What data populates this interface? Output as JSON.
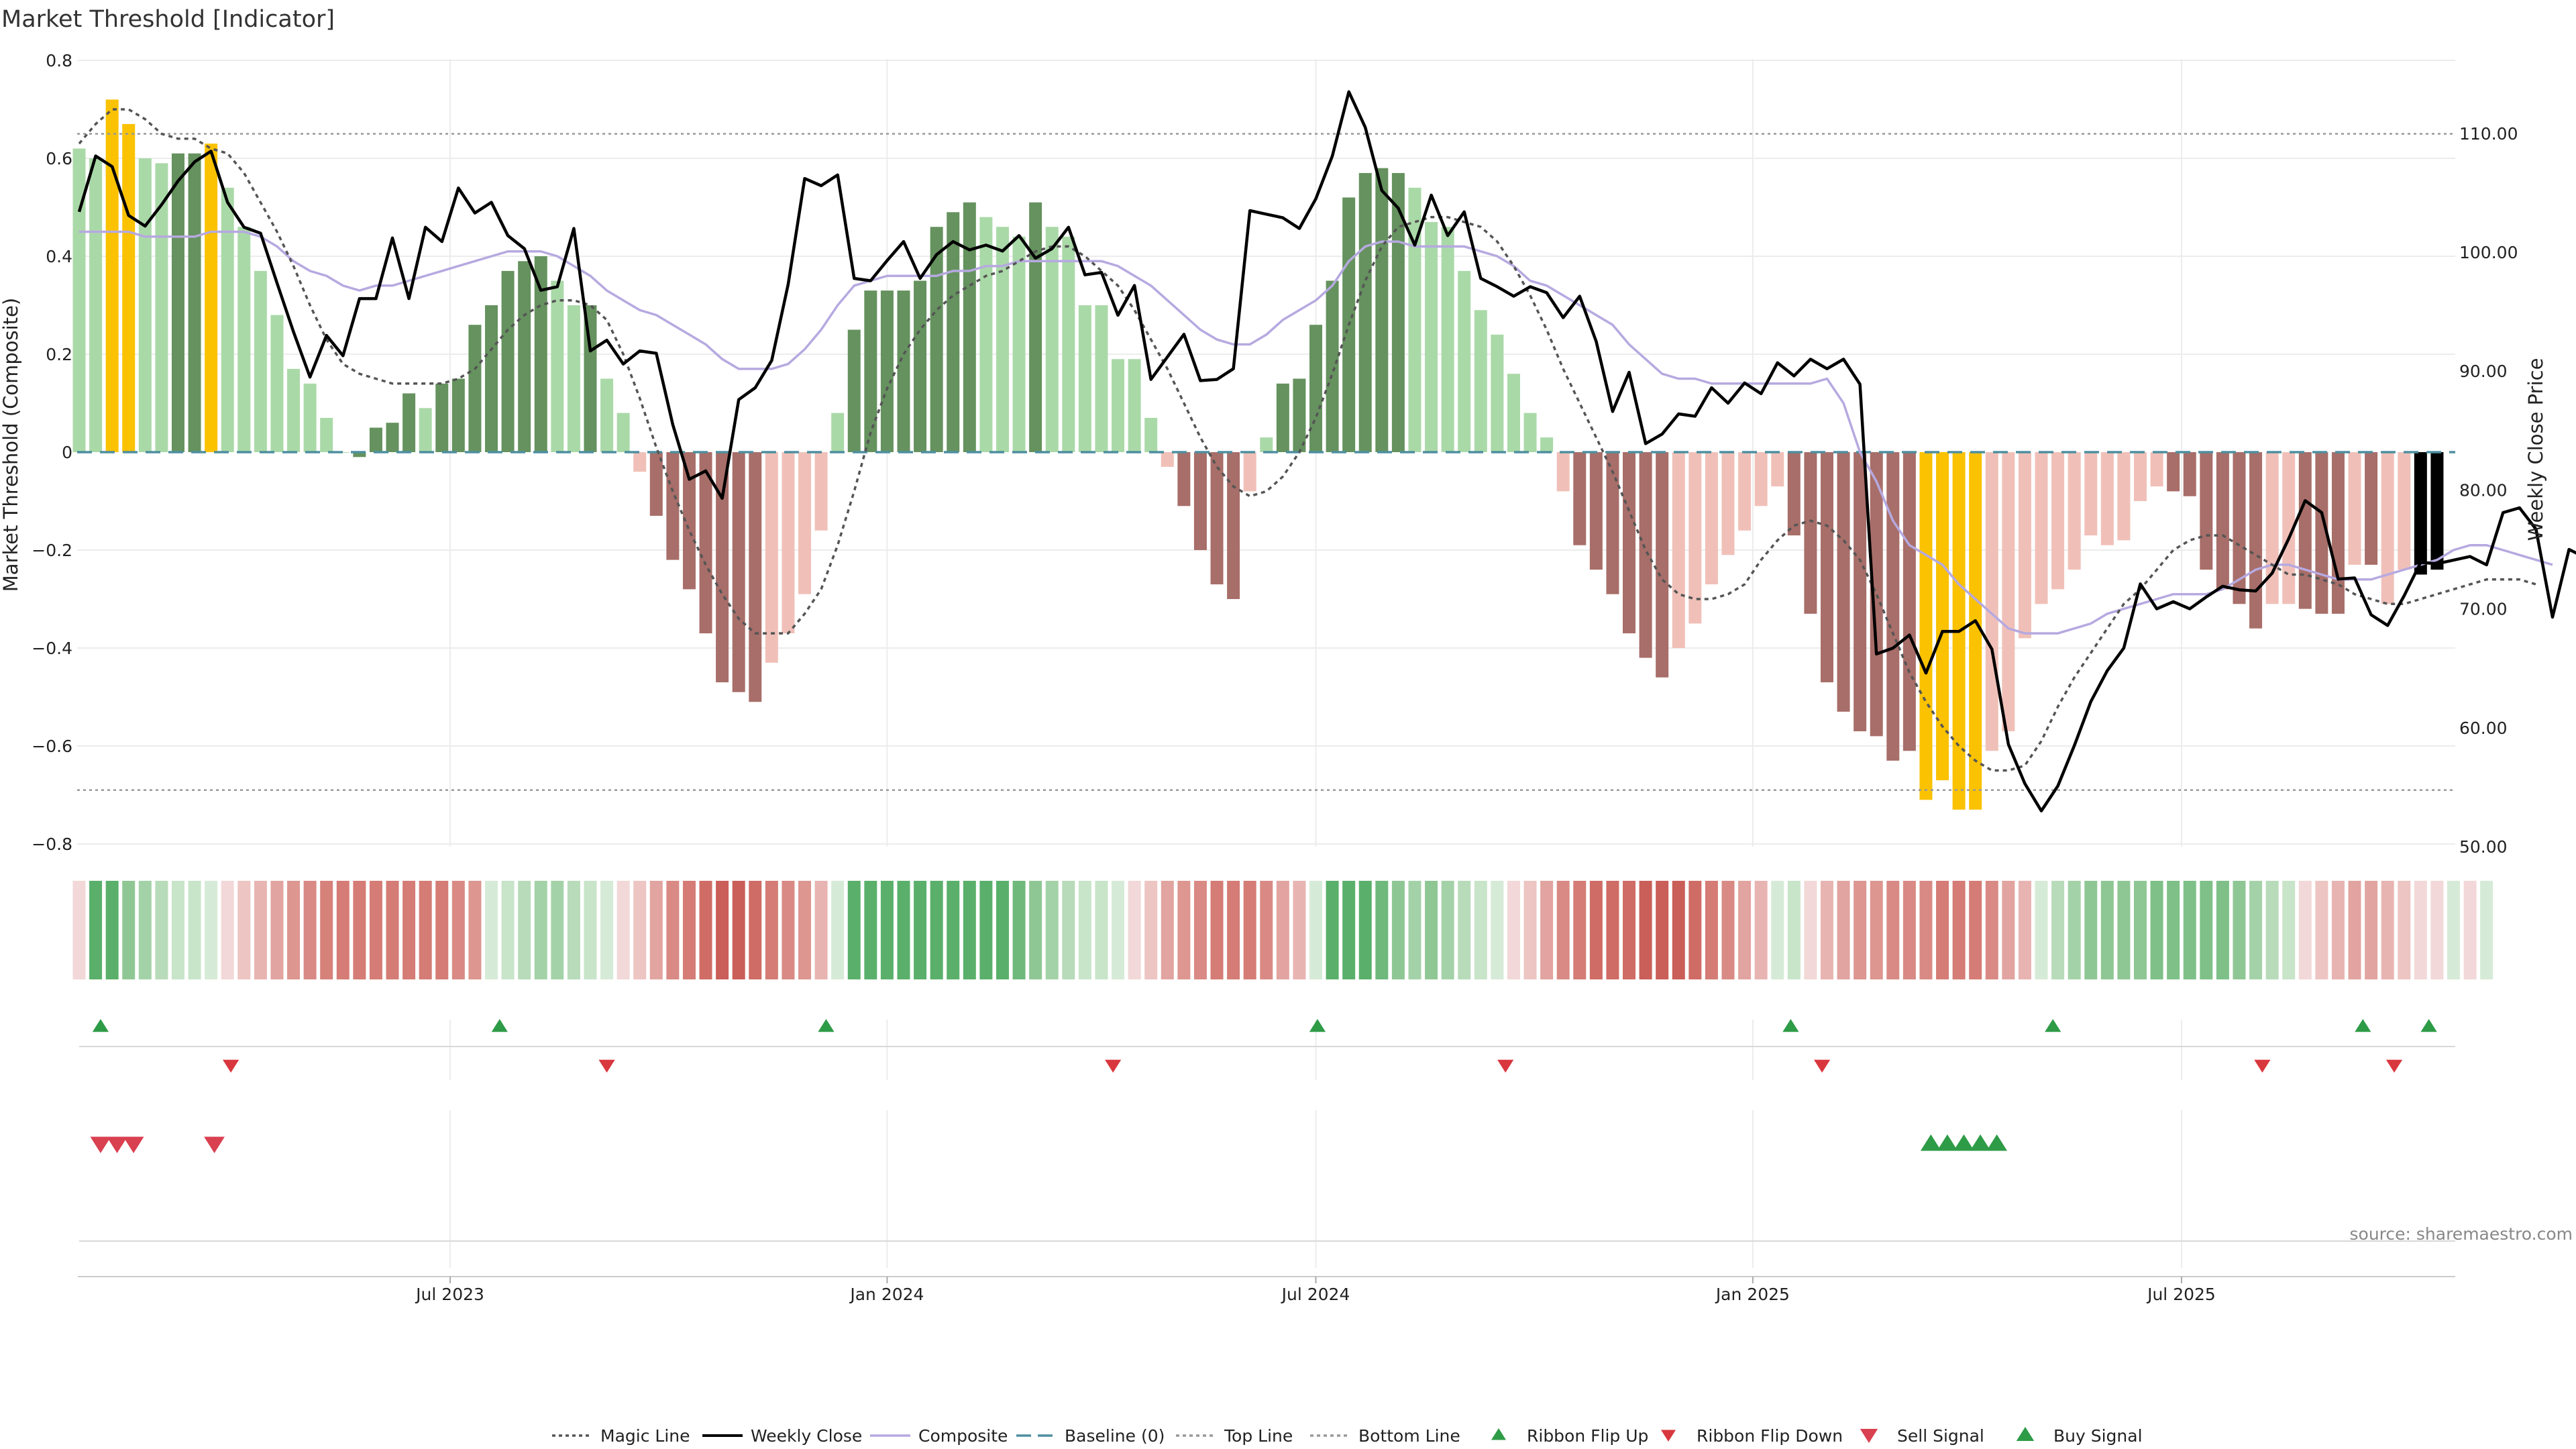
{
  "chart_data": {
    "type": "bar+line",
    "title": "Market Threshold [Indicator]",
    "ylabel_left": "Market Threshold (Composite)",
    "ylabel_right": "Weekly Close Price",
    "ylim_left": [
      -0.8,
      0.8
    ],
    "ylim_right": [
      50,
      115
    ],
    "yticks_left": [
      "0.8",
      "0.6",
      "0.4",
      "0.2",
      "0",
      "−0.2",
      "−0.4",
      "−0.6",
      "−0.8"
    ],
    "yticks_right": [
      "110.00",
      "100.00",
      "90.00",
      "80.00",
      "70.00",
      "60.00",
      "50.00"
    ],
    "xticks": [
      "Jul 2023",
      "Jan 2024",
      "Jul 2024",
      "Jan 2025",
      "Jul 2025"
    ],
    "xtick_weeks": [
      22.5,
      49,
      75,
      101.5,
      127.5
    ],
    "top_line": 0.65,
    "bottom_line": -0.69,
    "composite": [
      0.62,
      0.6,
      0.72,
      0.67,
      0.6,
      0.59,
      0.61,
      0.61,
      0.63,
      0.54,
      0.46,
      0.37,
      0.28,
      0.17,
      0.14,
      0.07,
      0.0,
      -0.01,
      0.05,
      0.06,
      0.12,
      0.09,
      0.14,
      0.15,
      0.26,
      0.3,
      0.37,
      0.39,
      0.4,
      0.35,
      0.3,
      0.3,
      0.15,
      0.08,
      -0.04,
      -0.13,
      -0.22,
      -0.28,
      -0.37,
      -0.47,
      -0.49,
      -0.51,
      -0.43,
      -0.37,
      -0.29,
      -0.16,
      0.08,
      0.25,
      0.33,
      0.33,
      0.33,
      0.35,
      0.46,
      0.49,
      0.51,
      0.48,
      0.46,
      0.44,
      0.51,
      0.46,
      0.44,
      0.3,
      0.3,
      0.19,
      0.19,
      0.07,
      -0.03,
      -0.11,
      -0.2,
      -0.27,
      -0.3,
      -0.08,
      0.03,
      0.14,
      0.15,
      0.26,
      0.35,
      0.52,
      0.57,
      0.58,
      0.57,
      0.54,
      0.47,
      0.46,
      0.37,
      0.29,
      0.24,
      0.16,
      0.08,
      0.03,
      -0.08,
      -0.19,
      -0.24,
      -0.29,
      -0.37,
      -0.42,
      -0.46,
      -0.4,
      -0.35,
      -0.27,
      -0.21,
      -0.16,
      -0.11,
      -0.07,
      -0.17,
      -0.33,
      -0.47,
      -0.53,
      -0.57,
      -0.58,
      -0.63,
      -0.61,
      -0.71,
      -0.67,
      -0.73,
      -0.73,
      -0.61,
      -0.57,
      -0.38,
      -0.31,
      -0.28,
      -0.24,
      -0.17,
      -0.19,
      -0.18,
      -0.1,
      -0.07,
      -0.08,
      -0.09,
      -0.24,
      -0.28,
      -0.31,
      -0.36,
      -0.31,
      -0.31,
      -0.32,
      -0.33,
      -0.33,
      -0.23,
      -0.23,
      -0.31,
      -0.24,
      -0.25,
      -0.24
    ],
    "bar_colors": [
      "#aad9a8",
      "#aad9a8",
      "#fac200",
      "#fac200",
      "#aad9a8",
      "#aad9a8",
      "#65925e",
      "#65925e",
      "#fac200",
      "#aad9a8",
      "#aad9a8",
      "#aad9a8",
      "#aad9a8",
      "#aad9a8",
      "#aad9a8",
      "#aad9a8",
      "#aad9a8",
      "#65925e",
      "#65925e",
      "#65925e",
      "#65925e",
      "#aad9a8",
      "#65925e",
      "#65925e",
      "#65925e",
      "#65925e",
      "#65925e",
      "#65925e",
      "#65925e",
      "#aad9a8",
      "#aad9a8",
      "#65925e",
      "#aad9a8",
      "#aad9a8",
      "#f0c0b8",
      "#a86e69",
      "#a86e69",
      "#a86e69",
      "#a86e69",
      "#a86e69",
      "#a86e69",
      "#a86e69",
      "#f0c0b8",
      "#f0c0b8",
      "#f0c0b8",
      "#f0c0b8",
      "#aad9a8",
      "#65925e",
      "#65925e",
      "#65925e",
      "#65925e",
      "#65925e",
      "#65925e",
      "#65925e",
      "#65925e",
      "#aad9a8",
      "#aad9a8",
      "#aad9a8",
      "#65925e",
      "#aad9a8",
      "#aad9a8",
      "#aad9a8",
      "#aad9a8",
      "#aad9a8",
      "#aad9a8",
      "#aad9a8",
      "#f0c0b8",
      "#a86e69",
      "#a86e69",
      "#a86e69",
      "#a86e69",
      "#f0c0b8",
      "#aad9a8",
      "#65925e",
      "#65925e",
      "#65925e",
      "#65925e",
      "#65925e",
      "#65925e",
      "#65925e",
      "#65925e",
      "#aad9a8",
      "#aad9a8",
      "#aad9a8",
      "#aad9a8",
      "#aad9a8",
      "#aad9a8",
      "#aad9a8",
      "#aad9a8",
      "#aad9a8",
      "#f0c0b8",
      "#a86e69",
      "#a86e69",
      "#a86e69",
      "#a86e69",
      "#a86e69",
      "#a86e69",
      "#f0c0b8",
      "#f0c0b8",
      "#f0c0b8",
      "#f0c0b8",
      "#f0c0b8",
      "#f0c0b8",
      "#f0c0b8",
      "#a86e69",
      "#a86e69",
      "#a86e69",
      "#a86e69",
      "#a86e69",
      "#a86e69",
      "#a86e69",
      "#a86e69",
      "#fac200",
      "#fac200",
      "#fac200",
      "#fac200",
      "#f0c0b8",
      "#f0c0b8",
      "#f0c0b8",
      "#f0c0b8",
      "#f0c0b8",
      "#f0c0b8",
      "#f0c0b8",
      "#f0c0b8",
      "#f0c0b8",
      "#f0c0b8",
      "#f0c0b8",
      "#a86e69",
      "#a86e69",
      "#a86e69",
      "#a86e69",
      "#a86e69",
      "#a86e69",
      "#f0c0b8",
      "#f0c0b8",
      "#a86e69",
      "#a86e69",
      "#a86e69",
      "#f0c0b8",
      "#a86e69",
      "#f0c0b8",
      "#f0c0b8"
    ],
    "weekly_close": [
      103.4,
      108.1,
      107.2,
      103.1,
      102.2,
      104.0,
      106.0,
      107.6,
      108.5,
      104.2,
      102.1,
      101.6,
      97.4,
      93.3,
      89.5,
      93.0,
      91.3,
      96.1,
      96.1,
      101.2,
      96.1,
      102.1,
      100.9,
      105.4,
      103.3,
      104.2,
      101.4,
      100.3,
      96.8,
      97.1,
      102.0,
      91.7,
      92.6,
      90.6,
      91.7,
      91.5,
      85.5,
      80.9,
      81.6,
      79.3,
      87.6,
      88.6,
      90.9,
      97.3,
      106.2,
      105.6,
      106.5,
      97.8,
      97.6,
      99.3,
      100.9,
      97.8,
      99.8,
      100.9,
      100.2,
      100.6,
      100.1,
      101.4,
      99.5,
      100.3,
      102.1,
      98.1,
      98.3,
      94.7,
      97.2,
      89.3,
      91.2,
      93.1,
      89.2,
      89.3,
      90.2,
      103.5,
      103.2,
      102.9,
      102.0,
      104.5,
      108.1,
      113.5,
      110.5,
      105.2,
      103.7,
      100.6,
      104.8,
      101.4,
      103.4,
      97.8,
      97.1,
      96.3,
      97.1,
      96.6,
      94.5,
      96.3,
      92.5,
      86.6,
      89.9,
      83.9,
      84.7,
      86.4,
      86.2,
      88.6,
      87.3,
      89.0,
      88.1,
      90.7,
      89.6,
      91.0,
      90.2,
      91.0,
      88.9,
      66.2,
      66.7,
      67.8,
      64.6,
      68.1,
      68.1,
      69.0,
      66.6,
      58.6,
      55.3,
      53.0,
      55.1,
      58.5,
      62.2,
      64.8,
      66.7,
      72.1,
      70.0,
      70.6,
      70.0,
      71.0,
      71.9,
      71.6,
      71.5,
      73.0,
      75.9,
      79.1,
      78.1,
      72.5,
      72.6,
      69.5,
      68.6,
      71.1,
      73.9,
      73.8,
      74.1,
      74.4,
      73.7,
      78.1,
      78.5,
      76.7,
      69.3,
      75.0,
      74.3
    ],
    "composite_line": [
      0.45,
      0.45,
      0.45,
      0.45,
      0.44,
      0.44,
      0.44,
      0.44,
      0.45,
      0.45,
      0.45,
      0.44,
      0.42,
      0.39,
      0.37,
      0.36,
      0.34,
      0.33,
      0.34,
      0.34,
      0.35,
      0.36,
      0.37,
      0.38,
      0.39,
      0.4,
      0.41,
      0.41,
      0.41,
      0.4,
      0.38,
      0.36,
      0.33,
      0.31,
      0.29,
      0.28,
      0.26,
      0.24,
      0.22,
      0.19,
      0.17,
      0.17,
      0.17,
      0.18,
      0.21,
      0.25,
      0.3,
      0.34,
      0.35,
      0.36,
      0.36,
      0.36,
      0.36,
      0.37,
      0.37,
      0.38,
      0.38,
      0.39,
      0.39,
      0.39,
      0.39,
      0.39,
      0.39,
      0.38,
      0.36,
      0.34,
      0.31,
      0.28,
      0.25,
      0.23,
      0.22,
      0.22,
      0.24,
      0.27,
      0.29,
      0.31,
      0.34,
      0.39,
      0.42,
      0.43,
      0.43,
      0.42,
      0.42,
      0.42,
      0.42,
      0.41,
      0.4,
      0.38,
      0.35,
      0.34,
      0.32,
      0.3,
      0.28,
      0.26,
      0.22,
      0.19,
      0.16,
      0.15,
      0.15,
      0.14,
      0.14,
      0.14,
      0.14,
      0.14,
      0.14,
      0.14,
      0.15,
      0.1,
      0.0,
      -0.06,
      -0.14,
      -0.19,
      -0.21,
      -0.23,
      -0.27,
      -0.3,
      -0.33,
      -0.36,
      -0.37,
      -0.37,
      -0.37,
      -0.36,
      -0.35,
      -0.33,
      -0.32,
      -0.31,
      -0.3,
      -0.29,
      -0.29,
      -0.29,
      -0.28,
      -0.26,
      -0.24,
      -0.23,
      -0.23,
      -0.24,
      -0.25,
      -0.26,
      -0.26,
      -0.26,
      -0.25,
      -0.24,
      -0.23,
      -0.22,
      -0.2,
      -0.19,
      -0.19,
      -0.2,
      -0.21,
      -0.22,
      -0.23
    ],
    "magic_line": [
      0.63,
      0.67,
      0.7,
      0.7,
      0.68,
      0.65,
      0.64,
      0.64,
      0.62,
      0.61,
      0.57,
      0.51,
      0.45,
      0.38,
      0.3,
      0.23,
      0.18,
      0.16,
      0.15,
      0.14,
      0.14,
      0.14,
      0.14,
      0.15,
      0.17,
      0.21,
      0.25,
      0.28,
      0.3,
      0.31,
      0.31,
      0.3,
      0.27,
      0.2,
      0.11,
      0.01,
      -0.08,
      -0.16,
      -0.23,
      -0.29,
      -0.34,
      -0.37,
      -0.37,
      -0.37,
      -0.33,
      -0.28,
      -0.19,
      -0.08,
      0.04,
      0.13,
      0.2,
      0.25,
      0.29,
      0.32,
      0.34,
      0.36,
      0.37,
      0.39,
      0.41,
      0.42,
      0.42,
      0.4,
      0.37,
      0.34,
      0.29,
      0.23,
      0.17,
      0.1,
      0.03,
      -0.03,
      -0.07,
      -0.09,
      -0.08,
      -0.05,
      0.0,
      0.07,
      0.16,
      0.26,
      0.35,
      0.42,
      0.46,
      0.47,
      0.48,
      0.48,
      0.47,
      0.46,
      0.43,
      0.38,
      0.32,
      0.25,
      0.17,
      0.1,
      0.03,
      -0.04,
      -0.12,
      -0.2,
      -0.26,
      -0.29,
      -0.3,
      -0.3,
      -0.29,
      -0.27,
      -0.22,
      -0.18,
      -0.15,
      -0.14,
      -0.15,
      -0.18,
      -0.22,
      -0.29,
      -0.37,
      -0.45,
      -0.51,
      -0.56,
      -0.6,
      -0.63,
      -0.65,
      -0.65,
      -0.64,
      -0.59,
      -0.52,
      -0.46,
      -0.41,
      -0.36,
      -0.31,
      -0.28,
      -0.24,
      -0.2,
      -0.18,
      -0.17,
      -0.17,
      -0.19,
      -0.21,
      -0.23,
      -0.25,
      -0.25,
      -0.26,
      -0.27,
      -0.29,
      -0.3,
      -0.31,
      -0.31,
      -0.3,
      -0.29,
      -0.28,
      -0.27,
      -0.26,
      -0.26,
      -0.26,
      -0.27
    ],
    "ribbon_colors": [
      "#f2d8d8",
      "#5ab06a",
      "#5ab06a",
      "#8fc794",
      "#a4d2a8",
      "#b8dbba",
      "#c8e4c9",
      "#c8e4c9",
      "#d6ebd7",
      "#f2d8d8",
      "#edc5c3",
      "#e8b4b1",
      "#e2a4a0",
      "#dd9690",
      "#d98a84",
      "#d6817a",
      "#d47c75",
      "#d47c75",
      "#d47c75",
      "#d47c75",
      "#d47c75",
      "#d47c75",
      "#d47c75",
      "#d98a84",
      "#dd9690",
      "#d6ebd7",
      "#c8e4c9",
      "#b8dbba",
      "#a4d2a8",
      "#a4d2a8",
      "#b8dbba",
      "#c8e4c9",
      "#d6ebd7",
      "#f2d8d8",
      "#edc5c3",
      "#e2a4a0",
      "#d98a84",
      "#d47c75",
      "#cf6c65",
      "#ca5e58",
      "#ca5e58",
      "#cf6c65",
      "#d47c75",
      "#d98a84",
      "#dd9690",
      "#e8b4b1",
      "#d6ebd7",
      "#5ab06a",
      "#5ab06a",
      "#5ab06a",
      "#5ab06a",
      "#5ab06a",
      "#5ab06a",
      "#5ab06a",
      "#5ab06a",
      "#5ab06a",
      "#5ab06a",
      "#6fb97d",
      "#8fc794",
      "#a4d2a8",
      "#b8dbba",
      "#c8e4c9",
      "#c8e4c9",
      "#d6ebd7",
      "#f2d8d8",
      "#edc5c3",
      "#e2a4a0",
      "#dd9690",
      "#d98a84",
      "#d47c75",
      "#d47c75",
      "#d47c75",
      "#d98a84",
      "#e2a4a0",
      "#e8b4b1",
      "#d6ebd7",
      "#5ab06a",
      "#5ab06a",
      "#5ab06a",
      "#6fb97d",
      "#8fc794",
      "#a4d2a8",
      "#8fc794",
      "#a4d2a8",
      "#b8dbba",
      "#c8e4c9",
      "#d6ebd7",
      "#f2d8d8",
      "#edc5c3",
      "#e2a4a0",
      "#d98a84",
      "#d47c75",
      "#cf6c65",
      "#cf6c65",
      "#cf6c65",
      "#ca5e58",
      "#ca5e58",
      "#ca5e58",
      "#cf6c65",
      "#d47c75",
      "#d98a84",
      "#e2a4a0",
      "#e8b4b1",
      "#d6ebd7",
      "#c8e4c9",
      "#f2d8d8",
      "#e8b4b1",
      "#e2a4a0",
      "#dd9690",
      "#dd9690",
      "#d98a84",
      "#d98a84",
      "#d98a84",
      "#d47c75",
      "#d47c75",
      "#d47c75",
      "#d98a84",
      "#e2a4a0",
      "#e8b4b1",
      "#d6ebd7",
      "#b8dbba",
      "#a4d2a8",
      "#8fc794",
      "#8fc794",
      "#8fc794",
      "#8fc794",
      "#7ec088",
      "#7ec088",
      "#7ec088",
      "#7ec088",
      "#7ec088",
      "#8fc794",
      "#a4d2a8",
      "#b8dbba",
      "#c8e4c9",
      "#f2d8d8",
      "#edc5c3",
      "#e8b4b1",
      "#e2a4a0",
      "#e2a4a0",
      "#e8b4b1",
      "#edc5c3",
      "#f2d8d8",
      "#f2d8d8",
      "#d6ebd7",
      "#f2d8d8",
      "#d6ebd7"
    ],
    "ribbon_flip_up_weeks": [
      1.3,
      25.5,
      45.3,
      75.1,
      103.8,
      119.7,
      138.5,
      142.5
    ],
    "ribbon_flip_down_weeks": [
      9.2,
      32.0,
      62.7,
      86.5,
      105.7,
      132.4,
      140.4
    ],
    "sell_signal_weeks": [
      1.3,
      2.3,
      3.3,
      8.2
    ],
    "buy_signal_weeks": [
      112.3,
      113.3,
      114.3,
      115.3,
      116.3
    ],
    "legend": [
      "Magic Line",
      "Weekly Close",
      "Composite",
      "Baseline (0)",
      "Top Line",
      "Bottom Line",
      "Ribbon Flip Up",
      "Ribbon Flip Down",
      "Sell Signal",
      "Buy Signal"
    ],
    "colors": {
      "magic_line": "#555555",
      "weekly_close": "#000000",
      "composite": "#b6a9e0",
      "baseline": "#4e8fa0",
      "top_bottom": "#999999",
      "flip_up": "#2e9b47",
      "flip_down": "#d9373e",
      "sell": "#d94050",
      "buy": "#2e9b47"
    },
    "source": "source: sharemaestro.com"
  }
}
